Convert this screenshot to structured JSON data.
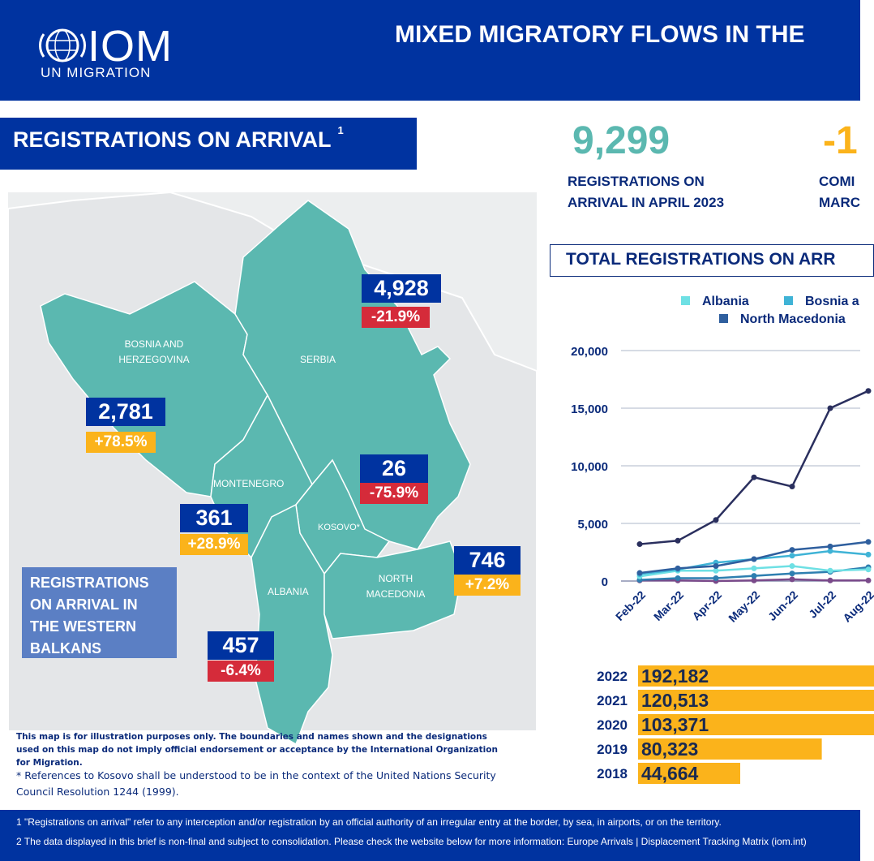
{
  "header": {
    "logo_text": "IOM",
    "logo_sub": "UN MIGRATION",
    "title": "MIXED MIGRATORY FLOWS IN THE"
  },
  "section": {
    "title": "REGISTRATIONS ON ARRIVAL",
    "footnote_mark": "1"
  },
  "map": {
    "countries": [
      "BOSNIA AND HERZEGOVINA",
      "SERBIA",
      "MONTENEGRO",
      "KOSOVO*",
      "ALBANIA",
      "NORTH MACEDONIA"
    ],
    "callouts": [
      {
        "country": "Serbia",
        "value": "4,928",
        "change": "-21.9%",
        "trend": "down"
      },
      {
        "country": "Bosnia and Herzegovina",
        "value": "2,781",
        "change": "+78.5%",
        "trend": "up"
      },
      {
        "country": "Kosovo",
        "value": "26",
        "change": "-75.9%",
        "trend": "down"
      },
      {
        "country": "Montenegro",
        "value": "361",
        "change": "+28.9%",
        "trend": "up"
      },
      {
        "country": "North Macedonia",
        "value": "746",
        "change": "+7.2%",
        "trend": "up"
      },
      {
        "country": "Albania",
        "value": "457",
        "change": "-6.4%",
        "trend": "down"
      }
    ],
    "legend": "REGISTRATIONS ON ARRIVAL IN THE WESTERN BALKANS",
    "disclaimer": "This map is for illustration purposes only. The boundaries and names shown and the designations used on this map do not imply official endorsement or acceptance by the International Organization for Migration.",
    "kosovo_note": "* References to Kosovo shall be understood to be in the context of the United Nations Security Council Resolution 1244 (1999)."
  },
  "kpis": [
    {
      "value": "9,299",
      "label_line1": "REGISTRATIONS ON",
      "label_line2": "ARRIVAL IN APRIL 2023"
    },
    {
      "value": "-1",
      "label_line1": "COMI",
      "label_line2": "MARC"
    }
  ],
  "colors": {
    "brand": "#0033a0",
    "teal": "#5bb8b0",
    "yellow": "#fbb31b",
    "red": "#d52b3a"
  },
  "chart_data": [
    {
      "type": "line",
      "title": "TOTAL REGISTRATIONS ON ARR",
      "x": [
        "Feb-22",
        "Mar-22",
        "Apr-22",
        "May-22",
        "Jun-22",
        "Jul-22",
        "Aug-22"
      ],
      "ylim": [
        0,
        20000
      ],
      "yticks": [
        "0",
        "5,000",
        "10,000",
        "15,000",
        "20,000"
      ],
      "grid": true,
      "legend_placement": "top",
      "legend": [
        {
          "name": "Albania",
          "color": "#6ee0e4"
        },
        {
          "name": "Bosnia a",
          "color": "#3fb3d6"
        },
        {
          "name": "North Macedonia",
          "color": "#2f5f9e"
        }
      ],
      "series": [
        {
          "color": "#2a2f5e",
          "values": [
            3200,
            3500,
            5300,
            9000,
            8200,
            15000,
            16500
          ]
        },
        {
          "color": "#2f5f9e",
          "values": [
            700,
            1100,
            1300,
            1900,
            2700,
            3000,
            3400
          ]
        },
        {
          "color": "#3fb3d6",
          "values": [
            600,
            1000,
            1600,
            1900,
            2200,
            2600,
            2300
          ]
        },
        {
          "color": "#6ee0e4",
          "values": [
            400,
            900,
            900,
            1100,
            1300,
            900,
            1000
          ]
        },
        {
          "color": "#2e7fb0",
          "values": [
            100,
            250,
            250,
            450,
            650,
            800,
            1200
          ]
        },
        {
          "color": "#7a4a8a",
          "values": [
            50,
            50,
            0,
            50,
            150,
            50,
            50
          ]
        }
      ]
    },
    {
      "type": "bar",
      "categories": [
        "2022",
        "2021",
        "2020",
        "2019",
        "2018"
      ],
      "values": [
        192182,
        120513,
        103371,
        80323,
        44664
      ],
      "labels": [
        "192,182",
        "120,513",
        "103,371",
        "80,323",
        "44,664"
      ],
      "color": "#fbb31b"
    }
  ],
  "footer": {
    "note1": "1 \"Registrations on arrival\" refer to any interception and/or registration by an official authority of an irregular entry at the border, by sea, in airports, or on the territory.",
    "note2": "2 The data displayed in this brief is non-final and subject to consolidation. Please check the website below for more information: ",
    "link": "Europe Arrivals | Displacement Tracking Matrix (iom.int)"
  }
}
